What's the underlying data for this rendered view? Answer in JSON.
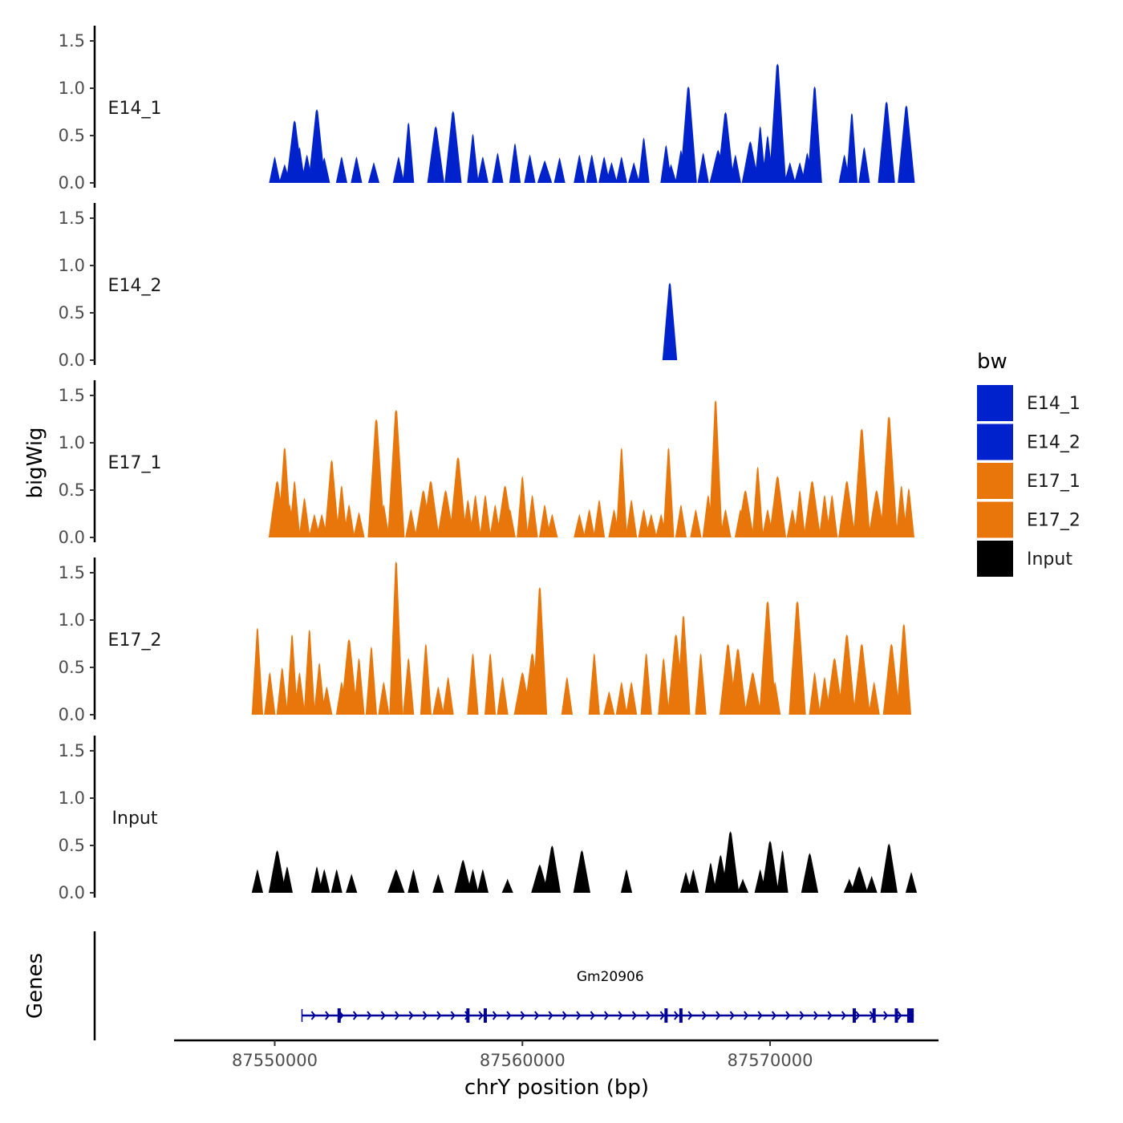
{
  "chart_data": {
    "type": "area",
    "layout": "stacked genome browser tracks",
    "y_title": "bigWig",
    "x_title": "chrY position (bp)",
    "genes_title": "Genes",
    "x_range": [
      87549000,
      87575800
    ],
    "x_plot_range": [
      87546000,
      87576800
    ],
    "x_ticks": [
      87550000,
      87560000,
      87570000
    ],
    "x_tick_labels": [
      "87550000",
      "87560000",
      "87570000"
    ],
    "y_range": [
      0,
      1.6
    ],
    "y_ticks": [
      0.0,
      0.5,
      1.0,
      1.5
    ],
    "y_tick_labels": [
      "0.0",
      "0.5",
      "1.0",
      "1.5"
    ],
    "legend": {
      "title": "bw",
      "items": [
        {
          "name": "E14_1",
          "color": "#0022cc"
        },
        {
          "name": "E14_2",
          "color": "#0022cc"
        },
        {
          "name": "E17_1",
          "color": "#e8760a"
        },
        {
          "name": "E17_2",
          "color": "#e8760a"
        },
        {
          "name": "Input",
          "color": "#000000"
        }
      ]
    },
    "series": [
      {
        "name": "E14_1",
        "color": "#0022cc",
        "peaks": [
          [
            87550000,
            0.28,
            1
          ],
          [
            87550400,
            0.2,
            1
          ],
          [
            87550800,
            0.66,
            1.5
          ],
          [
            87551000,
            0.38,
            1
          ],
          [
            87551300,
            0.3,
            1
          ],
          [
            87551700,
            0.78,
            1.5
          ],
          [
            87552000,
            0.27,
            1
          ],
          [
            87552700,
            0.28,
            1
          ],
          [
            87553300,
            0.28,
            1
          ],
          [
            87554000,
            0.22,
            1
          ],
          [
            87555000,
            0.28,
            1
          ],
          [
            87555400,
            0.64,
            1
          ],
          [
            87556500,
            0.6,
            1.5
          ],
          [
            87557200,
            0.76,
            1.5
          ],
          [
            87558000,
            0.52,
            1
          ],
          [
            87558400,
            0.28,
            1
          ],
          [
            87559000,
            0.32,
            1
          ],
          [
            87559700,
            0.42,
            1
          ],
          [
            87560300,
            0.3,
            1
          ],
          [
            87560900,
            0.24,
            1.3
          ],
          [
            87561500,
            0.27,
            1
          ],
          [
            87562300,
            0.3,
            1
          ],
          [
            87562800,
            0.3,
            1
          ],
          [
            87563300,
            0.28,
            1
          ],
          [
            87563600,
            0.22,
            1
          ],
          [
            87564000,
            0.28,
            1
          ],
          [
            87564500,
            0.22,
            1
          ],
          [
            87564900,
            0.48,
            1
          ],
          [
            87565800,
            0.4,
            1
          ],
          [
            87566000,
            0.2,
            1
          ],
          [
            87566400,
            0.35,
            1
          ],
          [
            87566700,
            1.02,
            1.5
          ],
          [
            87567300,
            0.32,
            1
          ],
          [
            87567900,
            0.35,
            1.5
          ],
          [
            87568200,
            0.75,
            1.5
          ],
          [
            87568600,
            0.3,
            1
          ],
          [
            87569200,
            0.44,
            1.5
          ],
          [
            87569600,
            0.6,
            1
          ],
          [
            87569900,
            0.5,
            1
          ],
          [
            87570300,
            1.26,
            1.5
          ],
          [
            87570800,
            0.22,
            1
          ],
          [
            87571200,
            0.22,
            1
          ],
          [
            87571500,
            0.32,
            1
          ],
          [
            87571800,
            1.02,
            1.3
          ],
          [
            87573000,
            0.3,
            1
          ],
          [
            87573300,
            0.74,
            1
          ],
          [
            87573800,
            0.38,
            1
          ],
          [
            87574700,
            0.86,
            1.5
          ],
          [
            87575500,
            0.82,
            1.5
          ]
        ]
      },
      {
        "name": "E14_2",
        "color": "#0022cc",
        "peaks": [
          [
            87565950,
            0.82,
            1.3
          ]
        ]
      },
      {
        "name": "E17_1",
        "color": "#e8760a",
        "peaks": [
          [
            87550100,
            0.6,
            1.5
          ],
          [
            87550400,
            0.95,
            1.2
          ],
          [
            87550600,
            0.35,
            1
          ],
          [
            87550800,
            0.6,
            1
          ],
          [
            87551200,
            0.42,
            1
          ],
          [
            87551600,
            0.25,
            1
          ],
          [
            87551900,
            0.25,
            1
          ],
          [
            87552300,
            0.82,
            1.3
          ],
          [
            87552700,
            0.55,
            1
          ],
          [
            87553000,
            0.35,
            1
          ],
          [
            87553400,
            0.27,
            1
          ],
          [
            87554100,
            1.25,
            1.5
          ],
          [
            87554400,
            0.35,
            1
          ],
          [
            87554900,
            1.35,
            1.5
          ],
          [
            87555500,
            0.3,
            1
          ],
          [
            87556000,
            0.5,
            1.5
          ],
          [
            87556300,
            0.6,
            1.5
          ],
          [
            87556900,
            0.5,
            1.5
          ],
          [
            87557400,
            0.85,
            1.5
          ],
          [
            87557800,
            0.4,
            1
          ],
          [
            87558100,
            0.45,
            1
          ],
          [
            87558500,
            0.45,
            1
          ],
          [
            87558900,
            0.35,
            1
          ],
          [
            87559300,
            0.55,
            1.5
          ],
          [
            87559500,
            0.3,
            1
          ],
          [
            87560000,
            0.65,
            1
          ],
          [
            87560400,
            0.45,
            1
          ],
          [
            87560900,
            0.35,
            1
          ],
          [
            87561200,
            0.25,
            1
          ],
          [
            87562300,
            0.25,
            1
          ],
          [
            87562700,
            0.3,
            1
          ],
          [
            87563100,
            0.4,
            1
          ],
          [
            87563700,
            0.3,
            1
          ],
          [
            87564000,
            0.95,
            1
          ],
          [
            87564400,
            0.4,
            1
          ],
          [
            87564900,
            0.3,
            1
          ],
          [
            87565200,
            0.25,
            1
          ],
          [
            87565600,
            0.25,
            1
          ],
          [
            87565900,
            0.95,
            1
          ],
          [
            87566400,
            0.35,
            1
          ],
          [
            87567000,
            0.3,
            1
          ],
          [
            87567500,
            0.45,
            1
          ],
          [
            87567800,
            1.45,
            1.2
          ],
          [
            87568200,
            0.3,
            1
          ],
          [
            87568800,
            0.3,
            1
          ],
          [
            87569000,
            0.5,
            1.5
          ],
          [
            87569500,
            0.75,
            1
          ],
          [
            87569900,
            0.3,
            1
          ],
          [
            87570300,
            0.65,
            1.5
          ],
          [
            87570900,
            0.3,
            1
          ],
          [
            87571200,
            0.5,
            1
          ],
          [
            87571700,
            0.6,
            1.5
          ],
          [
            87572200,
            0.45,
            1
          ],
          [
            87572500,
            0.45,
            1
          ],
          [
            87573100,
            0.6,
            1.5
          ],
          [
            87573700,
            1.15,
            1.5
          ],
          [
            87574300,
            0.5,
            1.5
          ],
          [
            87574800,
            1.28,
            1.5
          ],
          [
            87575300,
            0.55,
            1
          ],
          [
            87575600,
            0.52,
            1
          ]
        ]
      },
      {
        "name": "E17_2",
        "color": "#e8760a",
        "peaks": [
          [
            87549300,
            0.92,
            1
          ],
          [
            87549800,
            0.45,
            1
          ],
          [
            87550300,
            0.5,
            1
          ],
          [
            87550700,
            0.85,
            1
          ],
          [
            87551000,
            0.45,
            1
          ],
          [
            87551400,
            0.9,
            1
          ],
          [
            87551800,
            0.55,
            1
          ],
          [
            87552100,
            0.3,
            1
          ],
          [
            87552700,
            0.35,
            1
          ],
          [
            87553000,
            0.8,
            1.5
          ],
          [
            87553400,
            0.6,
            1
          ],
          [
            87553900,
            0.72,
            1
          ],
          [
            87554400,
            0.35,
            1
          ],
          [
            87554900,
            1.62,
            1.2
          ],
          [
            87555400,
            0.6,
            1
          ],
          [
            87556100,
            0.75,
            1
          ],
          [
            87556600,
            0.3,
            1
          ],
          [
            87557000,
            0.4,
            1
          ],
          [
            87558000,
            0.65,
            1
          ],
          [
            87558700,
            0.65,
            1
          ],
          [
            87559200,
            0.4,
            1
          ],
          [
            87560000,
            0.45,
            1.5
          ],
          [
            87560400,
            0.65,
            1.5
          ],
          [
            87560700,
            1.35,
            1.3
          ],
          [
            87561800,
            0.4,
            1
          ],
          [
            87562900,
            0.65,
            1
          ],
          [
            87563500,
            0.25,
            1
          ],
          [
            87564000,
            0.35,
            1
          ],
          [
            87564400,
            0.35,
            1
          ],
          [
            87565000,
            0.65,
            1
          ],
          [
            87565700,
            0.6,
            1
          ],
          [
            87566200,
            0.85,
            1.5
          ],
          [
            87566500,
            1.05,
            1.2
          ],
          [
            87567200,
            0.65,
            1
          ],
          [
            87568300,
            0.75,
            1.5
          ],
          [
            87568700,
            0.7,
            1.5
          ],
          [
            87569300,
            0.45,
            1.5
          ],
          [
            87569900,
            1.2,
            1.5
          ],
          [
            87570200,
            0.35,
            1
          ],
          [
            87571100,
            1.2,
            1.5
          ],
          [
            87571800,
            0.45,
            1
          ],
          [
            87572200,
            0.4,
            1
          ],
          [
            87572600,
            0.6,
            1.5
          ],
          [
            87573100,
            0.85,
            1.5
          ],
          [
            87573700,
            0.75,
            1.5
          ],
          [
            87574200,
            0.35,
            1
          ],
          [
            87574900,
            0.75,
            1.5
          ],
          [
            87575400,
            0.96,
            1.3
          ]
        ]
      },
      {
        "name": "Input",
        "color": "#000000",
        "peaks": [
          [
            87549300,
            0.25,
            1
          ],
          [
            87550100,
            0.45,
            1.5
          ],
          [
            87550500,
            0.28,
            1
          ],
          [
            87551700,
            0.28,
            1
          ],
          [
            87552000,
            0.25,
            1
          ],
          [
            87552500,
            0.25,
            1
          ],
          [
            87553100,
            0.2,
            1
          ],
          [
            87554900,
            0.25,
            1.5
          ],
          [
            87555600,
            0.25,
            1
          ],
          [
            87556600,
            0.2,
            1
          ],
          [
            87557600,
            0.35,
            1.5
          ],
          [
            87558000,
            0.25,
            1
          ],
          [
            87558400,
            0.25,
            1
          ],
          [
            87559400,
            0.15,
            1
          ],
          [
            87560700,
            0.3,
            1.5
          ],
          [
            87561200,
            0.5,
            1.5
          ],
          [
            87562400,
            0.45,
            1.5
          ],
          [
            87564200,
            0.25,
            1
          ],
          [
            87566600,
            0.22,
            1
          ],
          [
            87566900,
            0.25,
            1
          ],
          [
            87567600,
            0.32,
            1
          ],
          [
            87568000,
            0.4,
            1.3
          ],
          [
            87568400,
            0.65,
            1.5
          ],
          [
            87568900,
            0.15,
            1
          ],
          [
            87569600,
            0.25,
            1
          ],
          [
            87570000,
            0.55,
            1.5
          ],
          [
            87570500,
            0.45,
            1
          ],
          [
            87571600,
            0.42,
            1.5
          ],
          [
            87573200,
            0.15,
            1
          ],
          [
            87573600,
            0.28,
            1.5
          ],
          [
            87574100,
            0.18,
            1
          ],
          [
            87574800,
            0.52,
            1.5
          ],
          [
            87575700,
            0.22,
            1
          ]
        ]
      }
    ],
    "genes": [
      {
        "name": "Gm20906",
        "start": 87551100,
        "end": 87575800,
        "strand": "+",
        "color": "#000099",
        "exons": [
          87552600,
          87557800,
          87558500,
          87565800,
          87566400,
          87573400,
          87574200,
          87575100,
          87575600
        ]
      }
    ]
  }
}
